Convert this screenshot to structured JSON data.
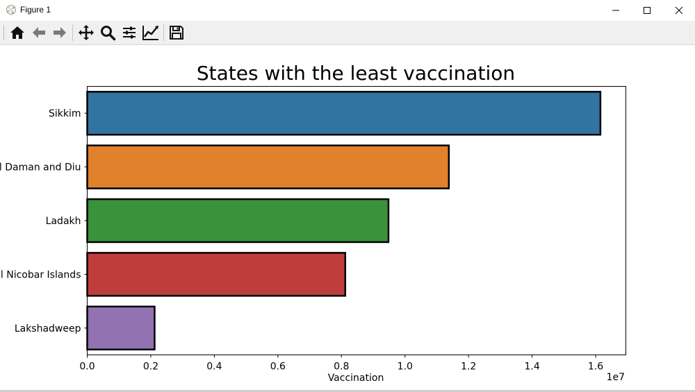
{
  "window": {
    "title": "Figure 1",
    "controls": [
      "minimize",
      "maximize",
      "close"
    ]
  },
  "toolbar": {
    "buttons": [
      {
        "name": "home-icon",
        "tooltip": "Reset original view"
      },
      {
        "name": "back-icon",
        "tooltip": "Back to previous view"
      },
      {
        "name": "forward-icon",
        "tooltip": "Forward to next view"
      },
      {
        "name": "pan-icon",
        "tooltip": "Pan axes"
      },
      {
        "name": "zoom-icon",
        "tooltip": "Zoom to rectangle"
      },
      {
        "name": "configure-subplots-icon",
        "tooltip": "Configure subplots"
      },
      {
        "name": "edit-axis-icon",
        "tooltip": "Edit axis, curve and image parameters"
      },
      {
        "name": "save-icon",
        "tooltip": "Save the figure"
      }
    ]
  },
  "chart_data": {
    "type": "bar",
    "orientation": "horizontal",
    "title": "States with the least vaccination",
    "xlabel": "Vaccination",
    "ylabel": "",
    "x_offset_label": "1e7",
    "xlim": [
      0,
      1.695
    ],
    "xticks": [
      0.0,
      0.2,
      0.4,
      0.6,
      0.8,
      1.0,
      1.2,
      1.4,
      1.6
    ],
    "xtick_labels": [
      "0.0",
      "0.2",
      "0.4",
      "0.6",
      "0.8",
      "1.0",
      "1.2",
      "1.4",
      "1.6"
    ],
    "grid": false,
    "categories": [
      "Sikkim",
      "Dadra and Nagar Haveli and Daman and Diu",
      "Ladakh",
      "Andaman and Nicobar Islands",
      "Lakshadweep"
    ],
    "visible_category_labels": [
      "Sikkim",
      "l Daman and Diu",
      "Ladakh",
      "l Nicobar Islands",
      "Lakshadweep"
    ],
    "values": [
      1.615,
      1.138,
      0.948,
      0.812,
      0.212
    ],
    "colors": [
      "#3274a1",
      "#e1812c",
      "#3a923a",
      "#c03d3e",
      "#9372b2"
    ],
    "edge_color": "#000000"
  }
}
